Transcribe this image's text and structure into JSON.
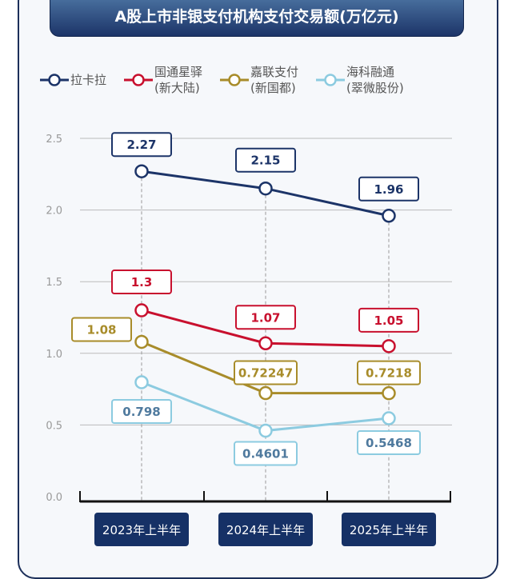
{
  "chart_data": {
    "type": "line",
    "title": "A股上市非银支付机构支付交易额(万亿元)",
    "categories": [
      "2023年上半年",
      "2024年上半年",
      "2025年上半年"
    ],
    "ylim": [
      0,
      2.5
    ],
    "yticks": [
      "0.0",
      "0.5",
      "1.0",
      "1.5",
      "2.0",
      "2.5"
    ],
    "grid": true,
    "legend_position": "top",
    "series": [
      {
        "name": "拉卡拉",
        "name2": "",
        "color": "#1c3468",
        "label_color": "#1c3468",
        "values": [
          2.27,
          2.15,
          1.96
        ],
        "labels": [
          "2.27",
          "2.15",
          "1.96"
        ]
      },
      {
        "name": "国通星驿",
        "name2": "(新大陆)",
        "color": "#c8102e",
        "label_color": "#c8102e",
        "values": [
          1.3,
          1.07,
          1.05
        ],
        "labels": [
          "1.3",
          "1.07",
          "1.05"
        ]
      },
      {
        "name": "嘉联支付",
        "name2": "(新国都)",
        "color": "#a88c2a",
        "label_color": "#a88c2a",
        "values": [
          1.08,
          0.72247,
          0.7218
        ],
        "labels": [
          "1.08",
          "0.72247",
          "0.7218"
        ]
      },
      {
        "name": "海科融通",
        "name2": "(翠微股份)",
        "color": "#8ccbe0",
        "label_color": "#4f7a9e",
        "values": [
          0.798,
          0.4601,
          0.5468
        ],
        "labels": [
          "0.798",
          "0.4601",
          "0.5468"
        ]
      }
    ]
  }
}
